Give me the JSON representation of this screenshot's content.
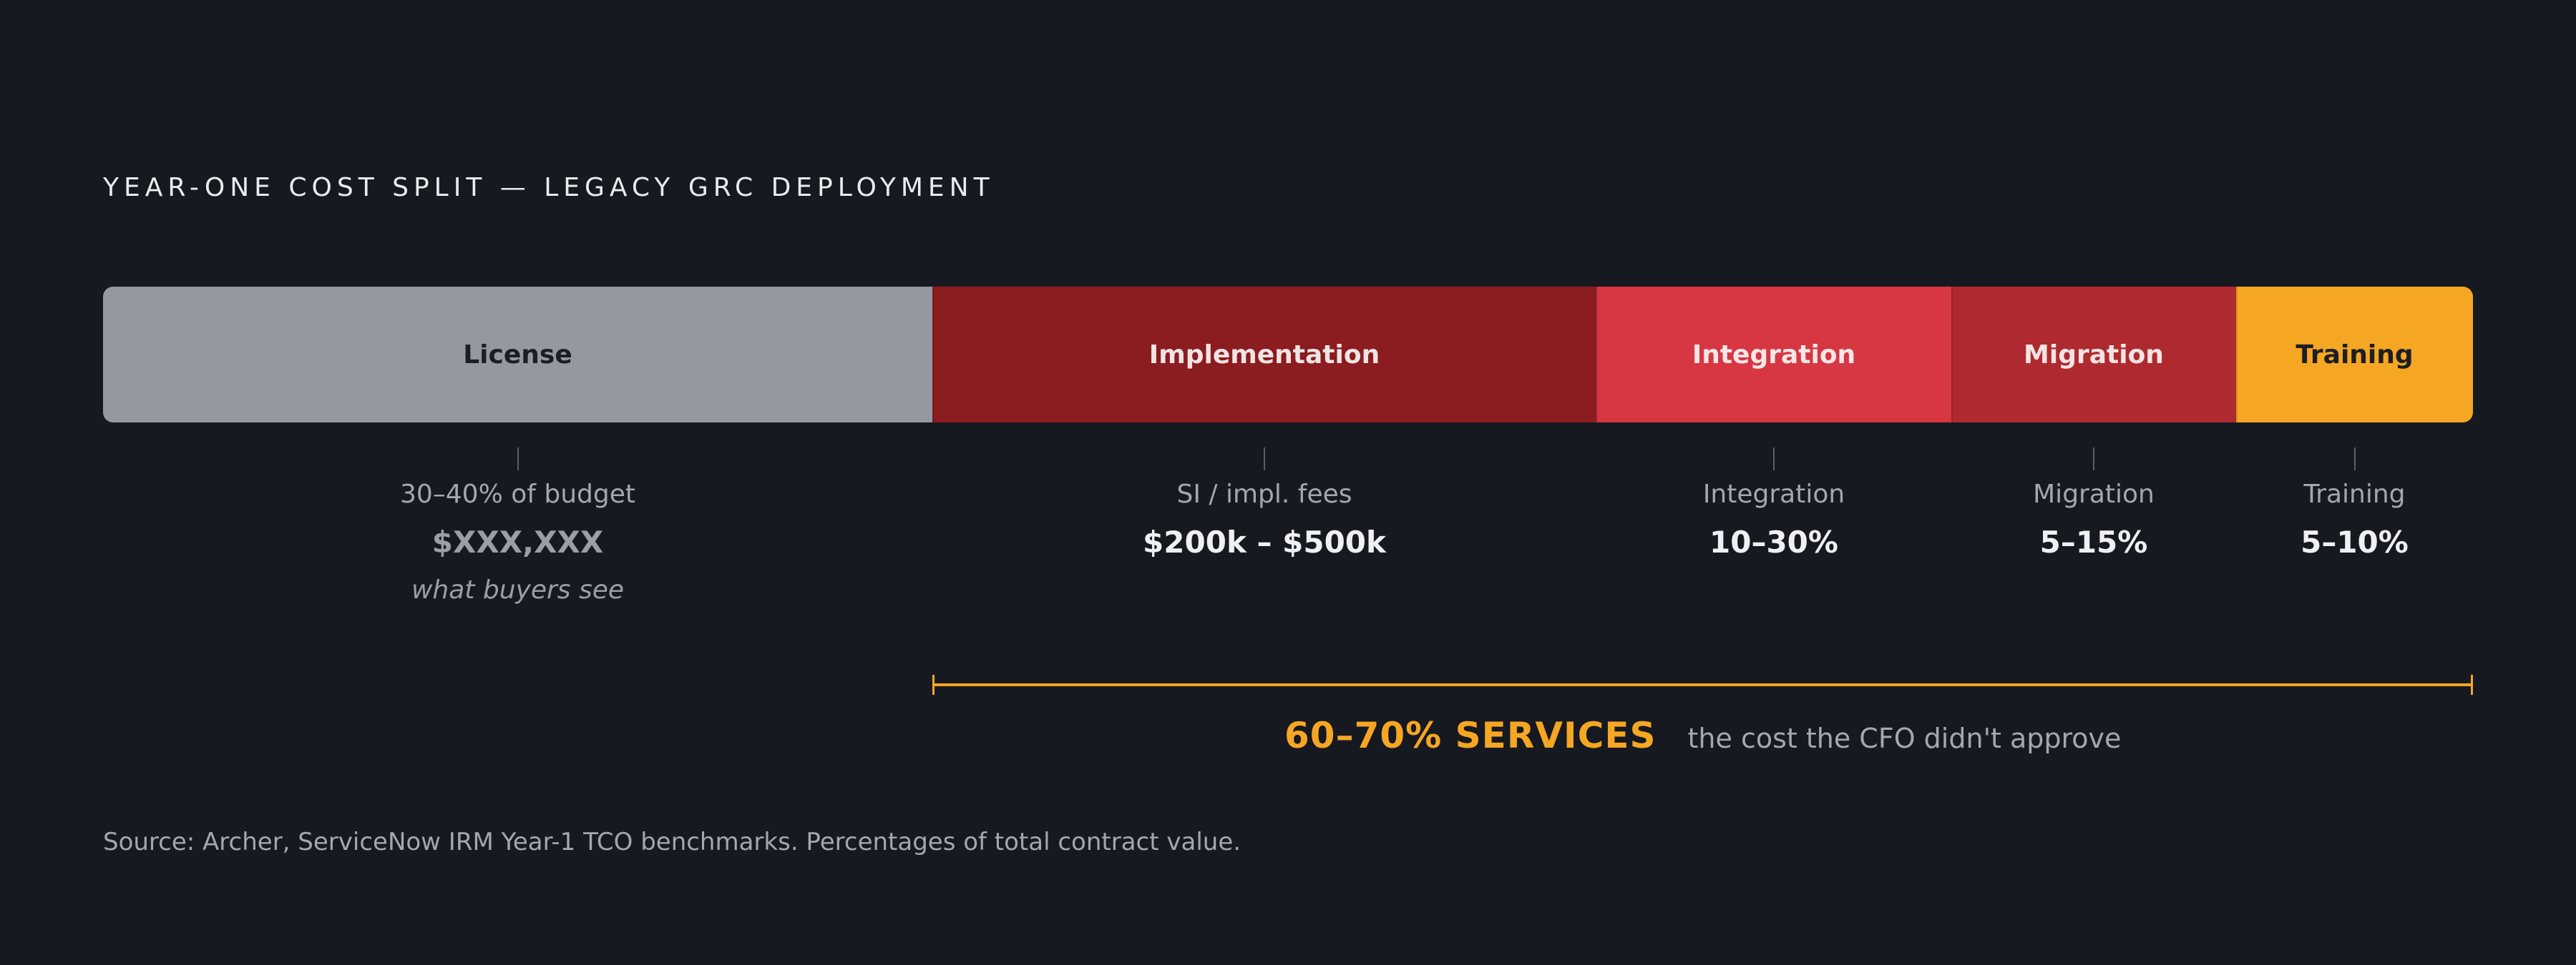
{
  "chart_data": {
    "type": "bar",
    "orientation": "horizontal-stacked",
    "title": "YEAR-ONE COST SPLIT — LEGACY GRC DEPLOYMENT",
    "segments": [
      {
        "label": "License",
        "share": 35,
        "color": "#9598a0",
        "text_color": "#1c1e24",
        "caption": "30–40% of budget",
        "value_label": "$XXX,XXX",
        "note": "what buyers see"
      },
      {
        "label": "Implementation",
        "share": 28,
        "color": "#8b1c1f",
        "text_color": "#f0e4e4",
        "caption": "SI / impl. fees",
        "value_label": "$200k – $500k"
      },
      {
        "label": "Integration",
        "share": 15,
        "color": "#d63742",
        "text_color": "#f6e6e7",
        "caption": "Integration",
        "value_label": "10–30%"
      },
      {
        "label": "Migration",
        "share": 12,
        "color": "#ae2a2e",
        "text_color": "#f4e3e3",
        "caption": "Migration",
        "value_label": "5–15%"
      },
      {
        "label": "Training",
        "share": 10,
        "color": "#f5a623",
        "text_color": "#1c1e24",
        "caption": "Training",
        "value_label": "5–10%"
      }
    ],
    "bracket": {
      "from_segment": 1,
      "to_segment": 4,
      "label": "60–70% SERVICES",
      "sublabel": "the cost the CFO didn't approve",
      "color": "#f5a623"
    },
    "source": "Source: Archer, ServiceNow IRM Year-1 TCO benchmarks. Percentages of total contract value."
  }
}
